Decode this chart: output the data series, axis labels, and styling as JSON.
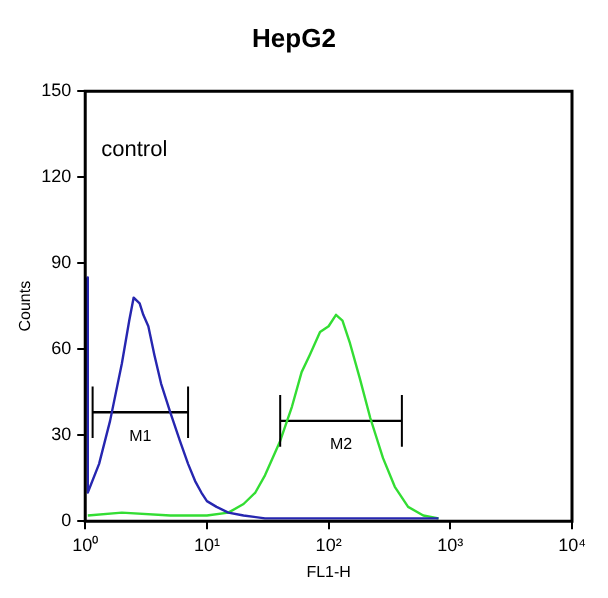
{
  "chart_data": {
    "type": "line",
    "title": "HepG2",
    "xlabel": "FL1-H",
    "ylabel": "Counts",
    "log": "x",
    "grid": false,
    "marker": "none",
    "legend": false,
    "xlim": [
      1,
      10000
    ],
    "xticks": [
      {
        "value": 1,
        "label": "10⁰"
      },
      {
        "value": 10,
        "label": "10¹"
      },
      {
        "value": 100,
        "label": "10²"
      },
      {
        "value": 1000,
        "label": "10³"
      },
      {
        "value": 10000,
        "label": "10⁴"
      }
    ],
    "ylim": [
      0,
      150
    ],
    "yticks": [
      0,
      30,
      60,
      90,
      120,
      150
    ],
    "annotations": [
      "control"
    ],
    "series": [
      {
        "color": "#2626b0",
        "x": [
          1.03,
          1.05,
          1.3,
          1.6,
          2,
          2.3,
          2.5,
          2.8,
          3,
          3.3,
          3.7,
          4.2,
          5,
          6,
          7,
          8,
          9,
          10,
          12,
          15,
          20,
          30,
          50,
          100,
          500,
          800
        ],
        "values": [
          85,
          10,
          20,
          35,
          55,
          70,
          78,
          76,
          72,
          68,
          58,
          48,
          38,
          28,
          20,
          14,
          10,
          7,
          5,
          3,
          2,
          1,
          1,
          1,
          1,
          1
        ]
      },
      {
        "color": "#33dd33",
        "x": [
          1.05,
          2,
          5,
          10,
          15,
          20,
          25,
          30,
          40,
          50,
          60,
          70,
          85,
          100,
          115,
          130,
          150,
          180,
          220,
          280,
          350,
          450,
          600,
          800
        ],
        "values": [
          2,
          3,
          2,
          2,
          3,
          6,
          10,
          16,
          28,
          40,
          52,
          58,
          66,
          68,
          72,
          70,
          62,
          50,
          36,
          22,
          12,
          5,
          2,
          1
        ]
      },
      {
        "name": "M1",
        "color": "#000000",
        "x": [
          1.15,
          7
        ],
        "values": [
          38,
          38
        ],
        "errors": [
          9,
          9
        ]
      },
      {
        "name": "M2",
        "color": "#000000",
        "x": [
          40,
          400
        ],
        "values": [
          35,
          35
        ],
        "errors": [
          9,
          9
        ]
      }
    ]
  }
}
